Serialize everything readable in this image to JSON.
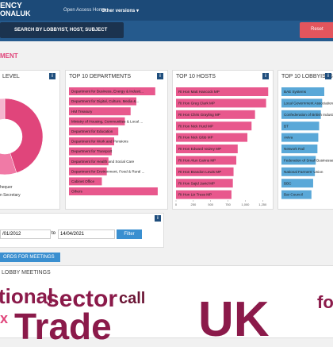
{
  "header": {
    "logo_top": "ENCY",
    "logo_bottom": "ONALUK",
    "nav_home": "Open Access Home",
    "nav_versions": "Other versions ▾"
  },
  "search": {
    "placeholder": "SEARCH BY LOBBYIST, HOST, SUBJECT",
    "reset": "Reset"
  },
  "section_title": "MENT",
  "level_panel": {
    "title": "LEVEL",
    "info": "i",
    "values": [
      45,
      20,
      15,
      12,
      8
    ],
    "colors": [
      "#e0457b",
      "#f07aa6",
      "#c52a65",
      "#bdbdbd",
      "#f5b6cf"
    ],
    "legend": [
      "hequer",
      "n Secretary"
    ]
  },
  "departments": {
    "title": "TOP 10 DEPARTMENTS",
    "info": "i",
    "color": "#e8588d",
    "xlim": [
      0,
      110
    ],
    "categories": [
      "Department for Business, Energy & Industr...",
      "Department for Digital, Culture, Media &...",
      "HM Treasury",
      "Ministry of Housing, Communities & Local ...",
      "Department for Education",
      "Department for Work and Pensions",
      "Department for Transport",
      "Department for Health and Social Care",
      "Department for Environment, Food & Rural ...",
      "Cabinet Office",
      "Others"
    ],
    "values": [
      105,
      82,
      75,
      68,
      60,
      55,
      52,
      48,
      46,
      40,
      108
    ]
  },
  "hosts": {
    "title": "TOP 10 HOSTS",
    "info": "i",
    "color": "#e8588d",
    "xlim": [
      0,
      1350
    ],
    "xticks": [
      0,
      250,
      500,
      750,
      {
        "value": 1000,
        "label": "1,000"
      },
      {
        "value": 1250,
        "label": "1,250"
      }
    ],
    "categories": [
      "Rt Hon Matt Hancock MP",
      "Rt Hon Greg Clark MP",
      "Rt Hon Chris Grayling MP",
      "Rt Hon Nick Hurd MP",
      "Rt Hon Nick Gibb MP",
      "Rt Hon Edward Vaizey MP",
      "Rt Hon Alun Cairns MP",
      "Rt Hon Brandon Lewis MP",
      "Rt Hon Sajid Javid MP",
      "Rt Hon Liz Truss MP"
    ],
    "values": [
      1330,
      1300,
      1140,
      1090,
      1030,
      890,
      870,
      830,
      820,
      800
    ]
  },
  "lobbyists": {
    "title": "TOP 10 LOBBYISTS",
    "info": "i",
    "color": "#5aa8d8",
    "xlim": [
      0,
      100
    ],
    "categories": [
      "BAE Systems",
      "Local Government Association",
      "Confederation of British Industry",
      "BT",
      "Aviva",
      "Network Rail",
      "Federation of Small Businesses",
      "National Farmers' Union",
      "BBC",
      "Bar Council"
    ],
    "values": [
      100,
      95,
      92,
      88,
      86,
      84,
      80,
      78,
      74,
      70
    ]
  },
  "dates": {
    "info": "i",
    "from": "/01/2012",
    "to_label": "to",
    "to": "14/04/2021",
    "filter": "Filter"
  },
  "records_button": "ORDS FOR MEETINGS",
  "meetings": {
    "title": "LOBBY MEETINGS",
    "words": [
      "tional",
      "sector",
      "call",
      "x",
      "Trade",
      "UK",
      "fo"
    ]
  }
}
